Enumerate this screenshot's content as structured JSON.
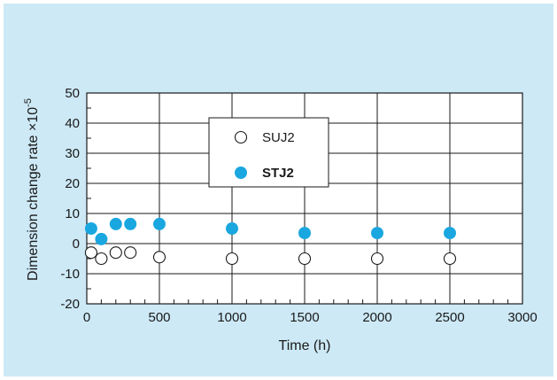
{
  "chart_data": {
    "type": "scatter",
    "xlabel": "Time (h)",
    "ylabel": "Dimension change rate ×10",
    "ylabel_exponent": "-5",
    "xlim": [
      0,
      3000
    ],
    "ylim": [
      -20,
      50
    ],
    "x_ticks": [
      "0",
      "500",
      "1000",
      "1500",
      "2000",
      "2500",
      "3000"
    ],
    "y_ticks": [
      "-20",
      "-10",
      "0",
      "10",
      "20",
      "30",
      "40",
      "50"
    ],
    "grid": true,
    "legend_position": "top-center",
    "series": [
      {
        "name": "SUJ2",
        "marker": "open-circle",
        "color": "#1a1a1a",
        "x": [
          30,
          100,
          200,
          300,
          500,
          1000,
          1500,
          2000,
          2500
        ],
        "y": [
          -3,
          -5,
          -3,
          -3,
          -4.5,
          -5,
          -5,
          -5,
          -5
        ]
      },
      {
        "name": "STJ2",
        "marker": "filled-circle",
        "color": "#1aa7e0",
        "x": [
          30,
          100,
          200,
          300,
          500,
          1000,
          1500,
          2000,
          2500
        ],
        "y": [
          5,
          1.5,
          6.5,
          6.5,
          6.5,
          5,
          3.5,
          3.5,
          3.5
        ]
      }
    ]
  }
}
